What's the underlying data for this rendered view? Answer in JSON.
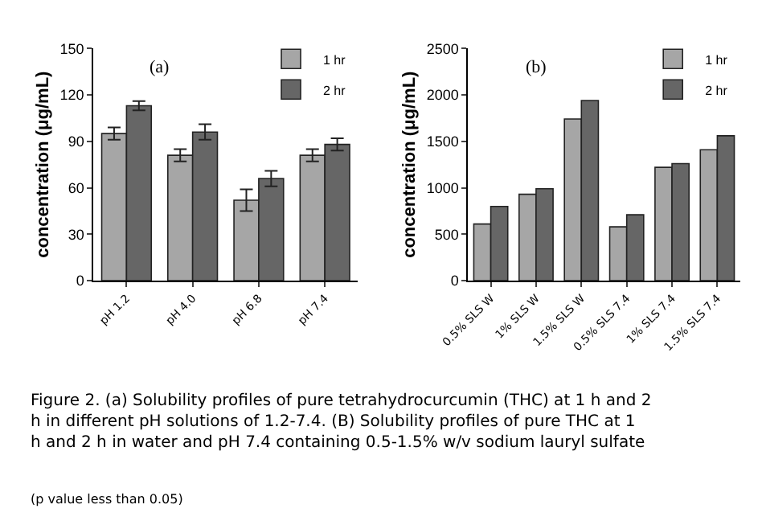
{
  "chart_data": [
    {
      "type": "bar",
      "categories": [
        "pH 1.2",
        "pH 4.0",
        "pH 6.8",
        "pH 7.4"
      ],
      "ylabel": "concentration (μg/mL)",
      "ylim": [
        0,
        150
      ],
      "yticks": [
        0,
        30,
        60,
        90,
        120,
        150
      ],
      "legend": "top right",
      "series": [
        {
          "name": "1 hr",
          "color": "#a6a6a6",
          "values": [
            95,
            81,
            52,
            81
          ],
          "errors": [
            4,
            4,
            7,
            4
          ]
        },
        {
          "name": "2 hr",
          "color": "#666666",
          "values": [
            113,
            96,
            66,
            88
          ],
          "errors": [
            3,
            5,
            5,
            4
          ]
        }
      ],
      "annotations": [
        "(a)",
        "Figure 2. (a) Solubility profiles of pure tetrahydrocurcumin (THC) at 1 h and 2 h in different pH solutions of 1.2-7.4. (B) Solubility profiles of pure THC at 1 h and 2 h in water and pH 7.4 containing 0.5-1.5% w/v sodium lauryl sulfate",
        "(p value less than 0.05)"
      ]
    },
    {
      "type": "bar",
      "categories": [
        "0.5% SLS W",
        "1% SLS W",
        "1.5% SLS W",
        "0.5% SLS 7.4",
        "1% SLS 7.4",
        "1.5% SLS 7.4"
      ],
      "ylabel": "concentration (μg/mL)",
      "ylim": [
        0,
        2500
      ],
      "yticks": [
        0,
        500,
        1000,
        1500,
        2000,
        2500
      ],
      "legend": "top right",
      "series": [
        {
          "name": "1 hr",
          "color": "#a6a6a6",
          "values": [
            610,
            930,
            1740,
            580,
            1220,
            1410
          ]
        },
        {
          "name": "2 hr",
          "color": "#666666",
          "values": [
            800,
            990,
            1940,
            710,
            1260,
            1560
          ]
        }
      ],
      "annotations": [
        "(b)"
      ]
    }
  ]
}
